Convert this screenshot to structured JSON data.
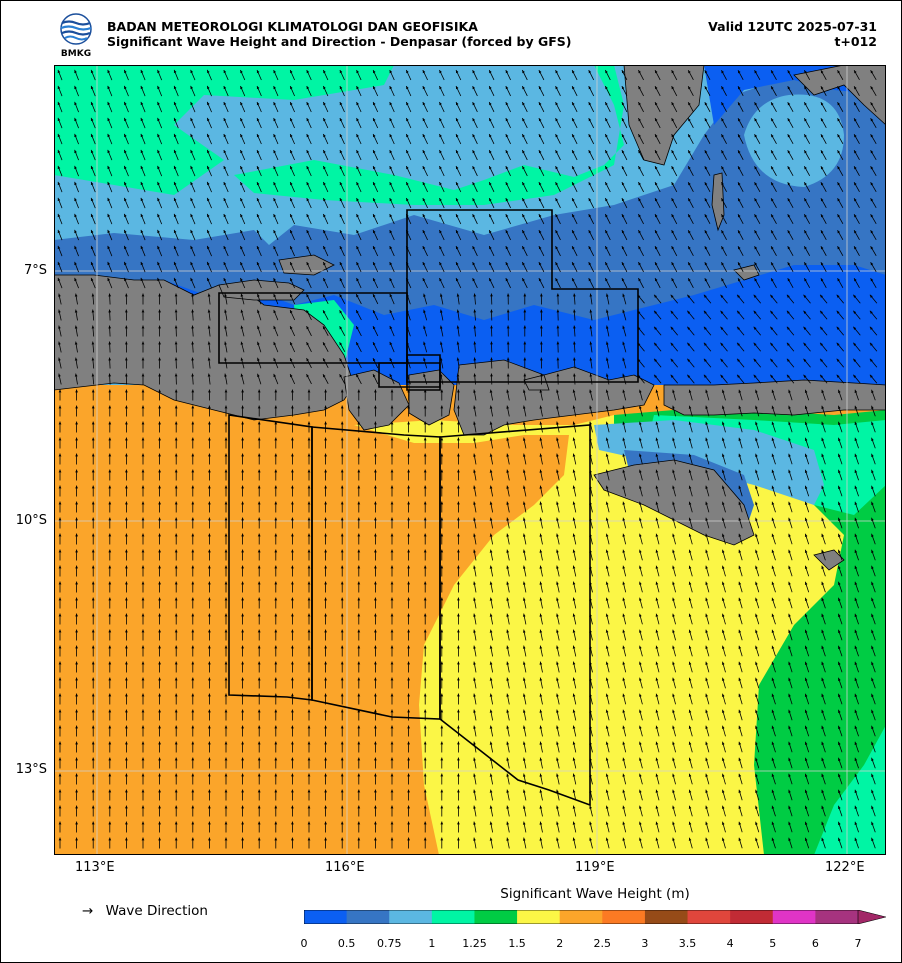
{
  "header": {
    "agency": "BADAN METEOROLOGI KLIMATOLOGI DAN GEOFISIKA",
    "subtitle": "Significant Wave Height and Direction - Denpasar (forced by GFS)",
    "valid": "Valid 12UTC 2025-07-31",
    "lead": "t+012",
    "logo_text": "BMKG"
  },
  "axes": {
    "lat_labels": [
      "7°S",
      "10°S",
      "13°S"
    ],
    "lon_labels": [
      "113°E",
      "116°E",
      "119°E",
      "122°E"
    ],
    "lat_range": [
      -14,
      -5.5
    ],
    "lon_range": [
      112.5,
      122.5
    ],
    "grid": true
  },
  "legend": {
    "arrow_symbol": "→",
    "direction_label": "Wave Direction",
    "colorbar_title": "Significant Wave Height (m)",
    "levels": [
      "0",
      "0.5",
      "0.75",
      "1",
      "1.25",
      "1.5",
      "2",
      "2.5",
      "3",
      "3.5",
      "4",
      "5",
      "6",
      "7"
    ],
    "colors": [
      "#0b5ff2",
      "#3675c4",
      "#5bb7e2",
      "#00f5a4",
      "#00cc44",
      "#fbf646",
      "#fba52a",
      "#fb7a23",
      "#964b18",
      "#e0463c",
      "#c12b35",
      "#e034c6",
      "#a6337f",
      "#a22767"
    ]
  },
  "map_colors": {
    "land": "#808080",
    "sea_0_05": "#0b5ff2",
    "sea_05_075": "#3675c4",
    "sea_075_1": "#5bb7e2",
    "sea_1_125": "#00f5a4",
    "sea_125_15": "#00cc44",
    "sea_15_2": "#fbf646",
    "sea_2_25": "#fba52a"
  }
}
